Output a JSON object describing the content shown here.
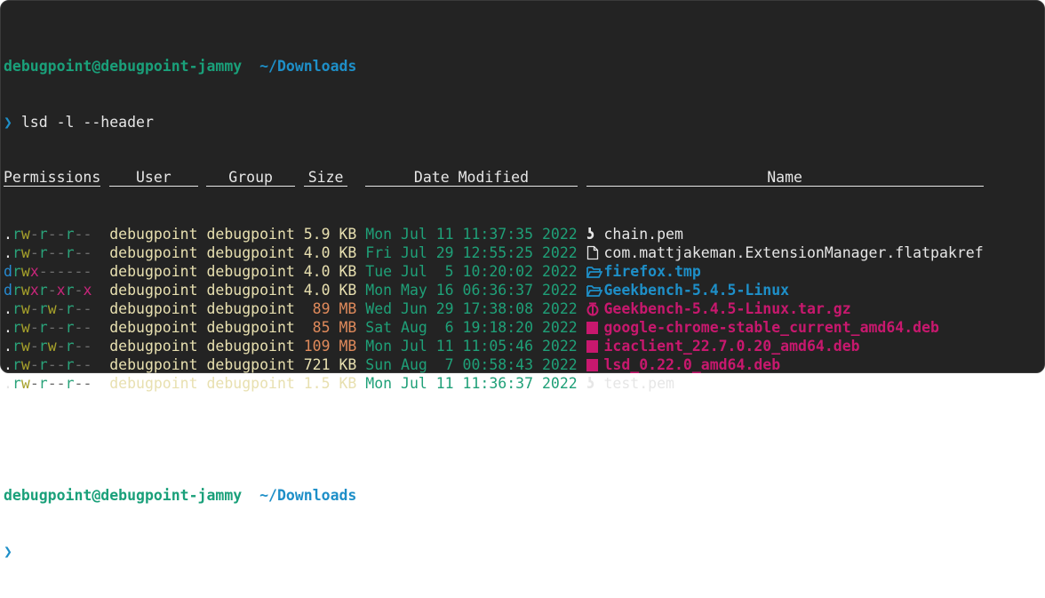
{
  "prompt": {
    "user_host": "debugpoint@debugpoint-jammy",
    "path": "~/Downloads",
    "symbol": "❯"
  },
  "command": "lsd -l --header",
  "headers": {
    "permissions": "Permissions",
    "user": "User",
    "group": "Group",
    "size": "Size",
    "date": "Date Modified",
    "name": "Name"
  },
  "rows": [
    {
      "permissions": ".rw-r--r--",
      "user": "debugpoint",
      "group": "debugpoint",
      "size": "5.9 KB",
      "date": "Mon Jul 11 11:37:35 2022",
      "icon": "key-icon",
      "name": "chain.pem",
      "kind": "file"
    },
    {
      "permissions": ".rw-r--r--",
      "user": "debugpoint",
      "group": "debugpoint",
      "size": "4.0 KB",
      "date": "Fri Jul 29 12:55:25 2022",
      "icon": "file-icon",
      "name": "com.mattjakeman.ExtensionManager.flatpakref",
      "kind": "file"
    },
    {
      "permissions": "drwx------",
      "user": "debugpoint",
      "group": "debugpoint",
      "size": "4.0 KB",
      "date": "Tue Jul  5 10:20:02 2022",
      "icon": "folder-icon",
      "name": "firefox.tmp",
      "kind": "dir"
    },
    {
      "permissions": "drwxr-xr-x",
      "user": "debugpoint",
      "group": "debugpoint",
      "size": "4.0 KB",
      "date": "Mon May 16 06:36:37 2022",
      "icon": "folder-icon",
      "name": "Geekbench-5.4.5-Linux",
      "kind": "dir"
    },
    {
      "permissions": ".rw-rw-r--",
      "user": "debugpoint",
      "group": "debugpoint",
      "size": " 89 MB",
      "date": "Wed Jun 29 17:38:08 2022",
      "icon": "archive-icon",
      "name": "Geekbench-5.4.5-Linux.tar.gz",
      "kind": "arch"
    },
    {
      "permissions": ".rw-r--r--",
      "user": "debugpoint",
      "group": "debugpoint",
      "size": " 85 MB",
      "date": "Sat Aug  6 19:18:20 2022",
      "icon": "package-icon",
      "name": "google-chrome-stable_current_amd64.deb",
      "kind": "arch"
    },
    {
      "permissions": ".rw-rw-r--",
      "user": "debugpoint",
      "group": "debugpoint",
      "size": "109 MB",
      "date": "Mon Jul 11 11:05:46 2022",
      "icon": "package-icon",
      "name": "icaclient_22.7.0.20_amd64.deb",
      "kind": "arch"
    },
    {
      "permissions": ".rw-r--r--",
      "user": "debugpoint",
      "group": "debugpoint",
      "size": "721 KB",
      "date": "Sun Aug  7 00:58:43 2022",
      "icon": "package-icon",
      "name": "lsd_0.22.0_amd64.deb",
      "kind": "arch"
    },
    {
      "permissions": ".rw-r--r--",
      "user": "debugpoint",
      "group": "debugpoint",
      "size": "1.5 KB",
      "date": "Mon Jul 11 11:36:37 2022",
      "icon": "key-icon",
      "name": "test.pem",
      "kind": "file"
    }
  ],
  "colors": {
    "background": "#232323",
    "read": "#2aa37a",
    "write": "#a6a12b",
    "exec": "#c7257a",
    "dir": "#1e8fc8",
    "archive": "#c8186e",
    "date": "#1fa078",
    "size_mb": "#e08a5b"
  }
}
